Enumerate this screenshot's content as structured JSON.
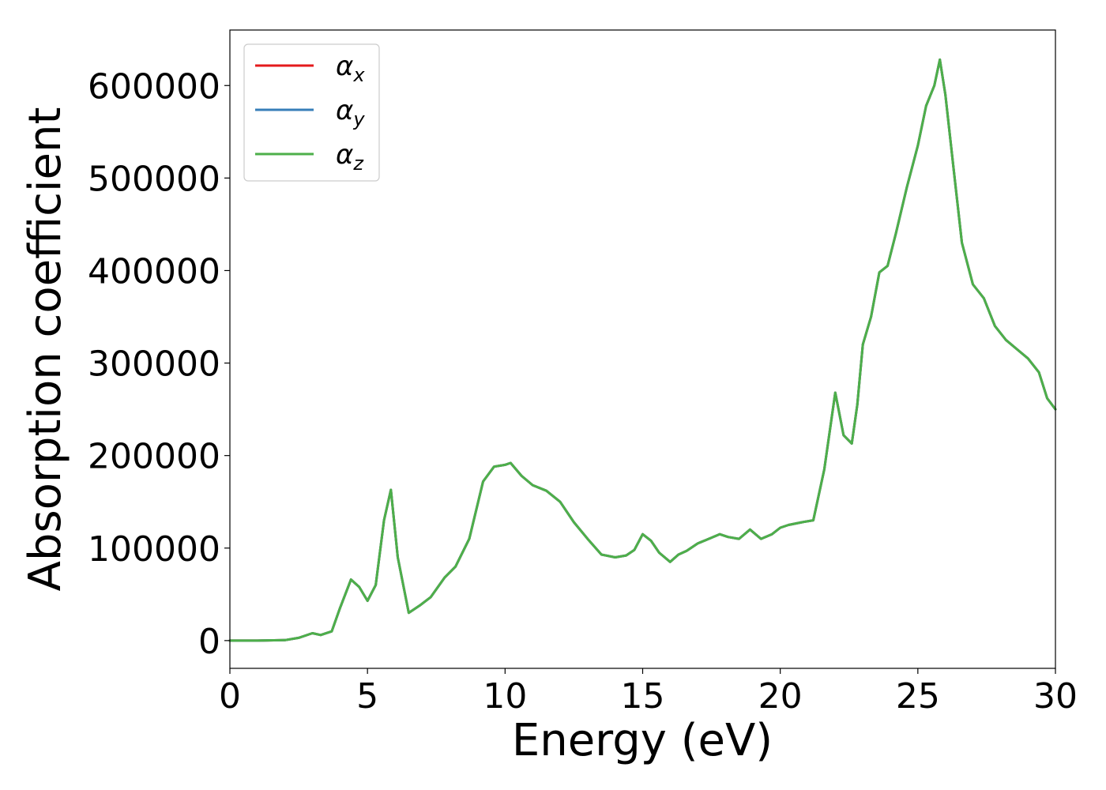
{
  "chart_data": {
    "type": "line",
    "xlabel": "Energy (eV)",
    "ylabel": "Absorption coefficient",
    "xlim": [
      0,
      30
    ],
    "ylim": [
      -30000,
      660000
    ],
    "xticks": [
      0,
      5,
      10,
      15,
      20,
      25,
      30
    ],
    "xtick_labels": [
      "0",
      "5",
      "10",
      "15",
      "20",
      "25",
      "30"
    ],
    "yticks": [
      0,
      100000,
      200000,
      300000,
      400000,
      500000,
      600000
    ],
    "ytick_labels": [
      "0",
      "100000",
      "200000",
      "300000",
      "400000",
      "500000",
      "600000"
    ],
    "grid": false,
    "legend_position": "top-left",
    "colors": {
      "alpha_x": "#e41a1c",
      "alpha_y": "#377eb8",
      "alpha_z": "#4daf4a"
    },
    "x": [
      0,
      1,
      2,
      2.5,
      3.0,
      3.3,
      3.7,
      4.0,
      4.4,
      4.7,
      5.0,
      5.3,
      5.6,
      5.85,
      6.1,
      6.5,
      6.9,
      7.3,
      7.8,
      8.2,
      8.7,
      9.2,
      9.6,
      10.0,
      10.2,
      10.6,
      11.0,
      11.5,
      12.0,
      12.5,
      13.0,
      13.5,
      14.0,
      14.4,
      14.7,
      15.0,
      15.3,
      15.6,
      16.0,
      16.3,
      16.6,
      17.0,
      17.4,
      17.8,
      18.1,
      18.5,
      18.9,
      19.3,
      19.7,
      20.0,
      20.3,
      20.8,
      21.2,
      21.6,
      22.0,
      22.3,
      22.6,
      22.8,
      23.0,
      23.3,
      23.6,
      23.9,
      24.2,
      24.6,
      25.0,
      25.3,
      25.6,
      25.8,
      26.0,
      26.3,
      26.6,
      27.0,
      27.4,
      27.8,
      28.2,
      28.6,
      29.0,
      29.4,
      29.7,
      30.0
    ],
    "series": [
      {
        "name": "α_x",
        "values": [
          0,
          0,
          500,
          3000,
          8000,
          6000,
          10000,
          35000,
          66000,
          58000,
          43000,
          60000,
          130000,
          163000,
          90000,
          30000,
          38000,
          47000,
          68000,
          80000,
          110000,
          172000,
          188000,
          190000,
          192000,
          178000,
          168000,
          162000,
          150000,
          128000,
          110000,
          93000,
          90000,
          92000,
          98000,
          115000,
          108000,
          95000,
          85000,
          93000,
          97000,
          105000,
          110000,
          115000,
          112000,
          110000,
          120000,
          110000,
          115000,
          122000,
          125000,
          128000,
          130000,
          185000,
          268000,
          222000,
          213000,
          255000,
          320000,
          350000,
          398000,
          405000,
          440000,
          490000,
          535000,
          578000,
          600000,
          628000,
          590000,
          510000,
          430000,
          385000,
          370000,
          340000,
          325000,
          315000,
          305000,
          290000,
          262000,
          250000
        ]
      },
      {
        "name": "α_y",
        "values": [
          0,
          0,
          500,
          3000,
          8000,
          6000,
          10000,
          35000,
          66000,
          58000,
          43000,
          60000,
          130000,
          163000,
          90000,
          30000,
          38000,
          47000,
          68000,
          80000,
          110000,
          172000,
          188000,
          190000,
          192000,
          178000,
          168000,
          162000,
          150000,
          128000,
          110000,
          93000,
          90000,
          92000,
          98000,
          115000,
          108000,
          95000,
          85000,
          93000,
          97000,
          105000,
          110000,
          115000,
          112000,
          110000,
          120000,
          110000,
          115000,
          122000,
          125000,
          128000,
          130000,
          185000,
          268000,
          222000,
          213000,
          255000,
          320000,
          350000,
          398000,
          405000,
          440000,
          490000,
          535000,
          578000,
          600000,
          628000,
          590000,
          510000,
          430000,
          385000,
          370000,
          340000,
          325000,
          315000,
          305000,
          290000,
          262000,
          250000
        ]
      },
      {
        "name": "α_z",
        "values": [
          0,
          0,
          500,
          3000,
          8000,
          6000,
          10000,
          35000,
          66000,
          58000,
          43000,
          60000,
          130000,
          163000,
          90000,
          30000,
          38000,
          47000,
          68000,
          80000,
          110000,
          172000,
          188000,
          190000,
          192000,
          178000,
          168000,
          162000,
          150000,
          128000,
          110000,
          93000,
          90000,
          92000,
          98000,
          115000,
          108000,
          95000,
          85000,
          93000,
          97000,
          105000,
          110000,
          115000,
          112000,
          110000,
          120000,
          110000,
          115000,
          122000,
          125000,
          128000,
          130000,
          185000,
          268000,
          222000,
          213000,
          255000,
          320000,
          350000,
          398000,
          405000,
          440000,
          490000,
          535000,
          578000,
          600000,
          628000,
          590000,
          510000,
          430000,
          385000,
          370000,
          340000,
          325000,
          315000,
          305000,
          290000,
          262000,
          250000
        ]
      }
    ],
    "legend": [
      {
        "symbol": "α",
        "subscript": "x"
      },
      {
        "symbol": "α",
        "subscript": "y"
      },
      {
        "symbol": "α",
        "subscript": "z"
      }
    ]
  }
}
